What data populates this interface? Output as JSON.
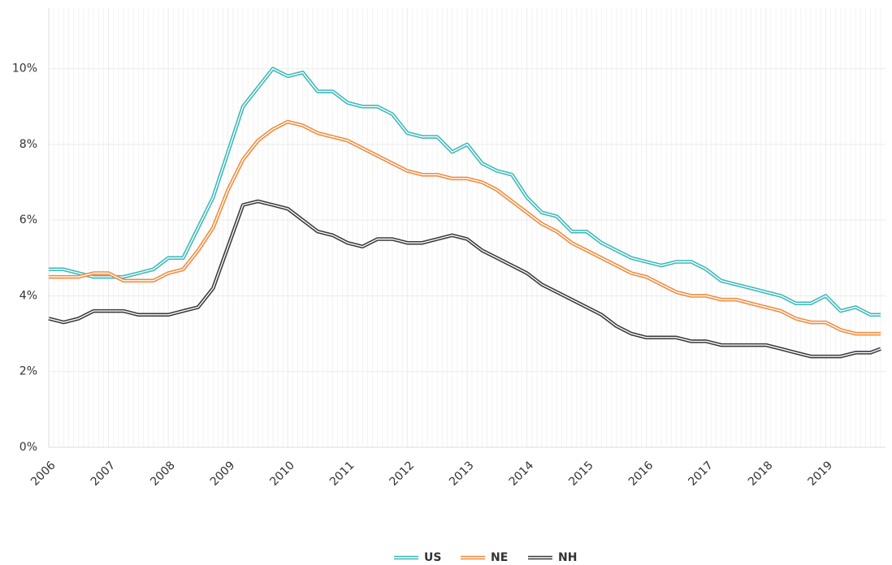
{
  "chart_data": {
    "type": "line",
    "x": [
      2006,
      2006.25,
      2006.5,
      2006.75,
      2007,
      2007.25,
      2007.5,
      2007.75,
      2008,
      2008.25,
      2008.5,
      2008.75,
      2009,
      2009.25,
      2009.5,
      2009.75,
      2010,
      2010.25,
      2010.5,
      2010.75,
      2011,
      2011.25,
      2011.5,
      2011.75,
      2012,
      2012.25,
      2012.5,
      2012.75,
      2013,
      2013.25,
      2013.5,
      2013.75,
      2014,
      2014.25,
      2014.5,
      2014.75,
      2015,
      2015.25,
      2015.5,
      2015.75,
      2016,
      2016.25,
      2016.5,
      2016.75,
      2017,
      2017.25,
      2017.5,
      2017.75,
      2018,
      2018.25,
      2018.5,
      2018.75,
      2019,
      2019.25,
      2019.5,
      2019.75,
      2019.92
    ],
    "series": [
      {
        "name": "US",
        "color": "#3bb8b8",
        "values": [
          4.7,
          4.7,
          4.6,
          4.5,
          4.5,
          4.5,
          4.6,
          4.7,
          5.0,
          5.0,
          5.8,
          6.6,
          7.8,
          9.0,
          9.5,
          10.0,
          9.8,
          9.9,
          9.4,
          9.4,
          9.1,
          9.0,
          9.0,
          8.8,
          8.3,
          8.2,
          8.2,
          7.8,
          8.0,
          7.5,
          7.3,
          7.2,
          6.6,
          6.2,
          6.1,
          5.7,
          5.7,
          5.4,
          5.2,
          5.0,
          4.9,
          4.8,
          4.9,
          4.9,
          4.7,
          4.4,
          4.3,
          4.2,
          4.1,
          4.0,
          3.8,
          3.8,
          4.0,
          3.6,
          3.7,
          3.5,
          3.5
        ]
      },
      {
        "name": "NE",
        "color": "#f08a3c",
        "values": [
          4.5,
          4.5,
          4.5,
          4.6,
          4.6,
          4.4,
          4.4,
          4.4,
          4.6,
          4.7,
          5.2,
          5.8,
          6.8,
          7.6,
          8.1,
          8.4,
          8.6,
          8.5,
          8.3,
          8.2,
          8.1,
          7.9,
          7.7,
          7.5,
          7.3,
          7.2,
          7.2,
          7.1,
          7.1,
          7.0,
          6.8,
          6.5,
          6.2,
          5.9,
          5.7,
          5.4,
          5.2,
          5.0,
          4.8,
          4.6,
          4.5,
          4.3,
          4.1,
          4.0,
          4.0,
          3.9,
          3.9,
          3.8,
          3.7,
          3.6,
          3.4,
          3.3,
          3.3,
          3.1,
          3.0,
          3.0,
          3.0
        ]
      },
      {
        "name": "NH",
        "color": "#3a3a3a",
        "values": [
          3.4,
          3.3,
          3.4,
          3.6,
          3.6,
          3.6,
          3.5,
          3.5,
          3.5,
          3.6,
          3.7,
          4.2,
          5.3,
          6.4,
          6.5,
          6.4,
          6.3,
          6.0,
          5.7,
          5.6,
          5.4,
          5.3,
          5.5,
          5.5,
          5.4,
          5.4,
          5.5,
          5.6,
          5.5,
          5.2,
          5.0,
          4.8,
          4.6,
          4.3,
          4.1,
          3.9,
          3.7,
          3.5,
          3.2,
          3.0,
          2.9,
          2.9,
          2.9,
          2.8,
          2.8,
          2.7,
          2.7,
          2.7,
          2.7,
          2.6,
          2.5,
          2.4,
          2.4,
          2.4,
          2.5,
          2.5,
          2.6
        ]
      }
    ],
    "xlim": [
      2006,
      2020
    ],
    "xticks": [
      2006,
      2007,
      2008,
      2009,
      2010,
      2011,
      2012,
      2013,
      2014,
      2015,
      2016,
      2017,
      2018,
      2019
    ],
    "ylim": [
      0,
      11.6
    ],
    "yticks": [
      {
        "value": 0,
        "label": "0%"
      },
      {
        "value": 2,
        "label": "2%"
      },
      {
        "value": 4,
        "label": "4%"
      },
      {
        "value": 6,
        "label": "6%"
      },
      {
        "value": 8,
        "label": "8%"
      },
      {
        "value": 10,
        "label": "10%"
      }
    ],
    "grid": true,
    "legend": "bottom"
  }
}
